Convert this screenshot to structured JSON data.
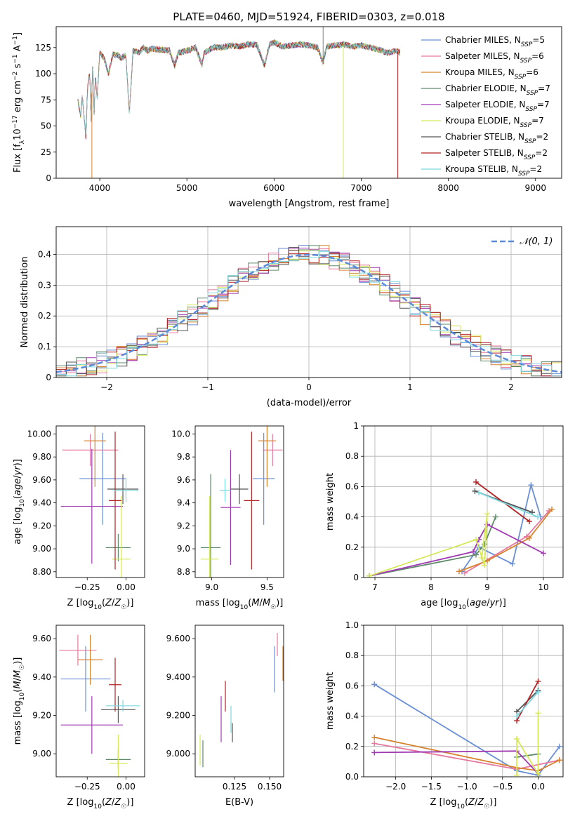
{
  "figure": {
    "title": "PLATE=0460, MJD=51924, FIBERID=0303, z=0.018"
  },
  "legend_entries": [
    {
      "name": "Chabrier MILES, N$_{SSP}$=5",
      "base": "Chabrier MILES, N",
      "sub": "SSP",
      "tail": "=5",
      "color": "#6a8fd6"
    },
    {
      "name": "Salpeter MILES, N$_{SSP}$=6",
      "base": "Salpeter MILES, N",
      "sub": "SSP",
      "tail": "=6",
      "color": "#e6789e"
    },
    {
      "name": "Kroupa MILES, N$_{SSP}$=6",
      "base": "Kroupa MILES, N",
      "sub": "SSP",
      "tail": "=6",
      "color": "#d6832e"
    },
    {
      "name": "Chabrier ELODIE, N$_{SSP}$=7",
      "base": "Chabrier ELODIE, N",
      "sub": "SSP",
      "tail": "=7",
      "color": "#5f8a6a"
    },
    {
      "name": "Salpeter ELODIE, N$_{SSP}$=7",
      "base": "Salpeter ELODIE, N",
      "sub": "SSP",
      "tail": "=7",
      "color": "#a03ab2"
    },
    {
      "name": "Kroupa ELODIE, N$_{SSP}$=7",
      "base": "Kroupa ELODIE, N",
      "sub": "SSP",
      "tail": "=7",
      "color": "#d6e85a"
    },
    {
      "name": "Chabrier STELIB, N$_{SSP}$=2",
      "base": "Chabrier STELIB, N",
      "sub": "SSP",
      "tail": "=2",
      "color": "#555555"
    },
    {
      "name": "Salpeter STELIB, N$_{SSP}$=2",
      "base": "Salpeter STELIB, N",
      "sub": "SSP",
      "tail": "=2",
      "color": "#b22222"
    },
    {
      "name": "Kroupa STELIB, N$_{SSP}$=2",
      "base": "Kroupa STELIB, N",
      "sub": "SSP",
      "tail": "=2",
      "color": "#7fd8e0"
    }
  ],
  "chart_data": [
    {
      "type": "line",
      "id": "spectrum",
      "xlabel": "wavelength [Angstrom, rest frame]",
      "ylabel": "Flux [f$_\\lambda$10$^{-17}$ erg cm$^{-2}$ s$^{-1}$ A$^{-1}$]",
      "xlim": [
        3500,
        9300
      ],
      "ylim": [
        0,
        145
      ],
      "xticks": [
        4000,
        5000,
        6000,
        7000,
        8000,
        9000
      ],
      "yticks": [
        0,
        25,
        50,
        75,
        100,
        125
      ],
      "grid": false,
      "legend_position": "top-right",
      "spectrum_range": [
        3750,
        7450
      ],
      "x": [
        3750,
        3780,
        3800,
        3840,
        3860,
        3880,
        3890,
        3900,
        3920,
        3935,
        3950,
        3970,
        4000,
        4050,
        4100,
        4150,
        4200,
        4250,
        4300,
        4340,
        4380,
        4450,
        4500,
        4550,
        4600,
        4700,
        4800,
        4860,
        4900,
        5000,
        5100,
        5175,
        5200,
        5300,
        5400,
        5500,
        5600,
        5700,
        5800,
        5890,
        5950,
        6000,
        6100,
        6200,
        6300,
        6400,
        6500,
        6563,
        6600,
        6700,
        6800,
        6900,
        7000,
        7100,
        7200,
        7300,
        7400,
        7450
      ],
      "series": [
        {
          "name": "combined",
          "y": [
            75,
            60,
            78,
            40,
            85,
            100,
            88,
            55,
            110,
            60,
            100,
            75,
            120,
            115,
            100,
            118,
            118,
            115,
            118,
            60,
            122,
            120,
            125,
            122,
            124,
            123,
            122,
            108,
            120,
            122,
            125,
            108,
            120,
            125,
            125,
            127,
            126,
            128,
            128,
            108,
            128,
            130,
            126,
            127,
            128,
            127,
            125,
            110,
            126,
            127,
            128,
            126,
            127,
            125,
            123,
            120,
            122,
            120
          ]
        }
      ],
      "features": {
        "lines_down": [
          {
            "x": 3910,
            "y": 0,
            "color": "#d6832e"
          },
          {
            "x": 6795,
            "y": 0,
            "color": "#d6e85a"
          },
          {
            "x": 7420,
            "y": 0,
            "color": "#b22222"
          }
        ],
        "spike_up": {
          "x": 6563,
          "y": 145,
          "color": "#7f7f7f"
        }
      }
    },
    {
      "type": "histogram",
      "id": "residuals",
      "xlabel": "(data-model)/error",
      "ylabel": "Normed distribution",
      "xlim": [
        -2.5,
        2.5
      ],
      "ylim": [
        0,
        0.49
      ],
      "xticks": [
        -2,
        -1,
        0,
        1,
        2
      ],
      "yticks": [
        0.0,
        0.1,
        0.2,
        0.3,
        0.4
      ],
      "grid": true,
      "reference": {
        "name": "$\\mathcal{N}(0,1)$",
        "label_text": "𝒩(0, 1)",
        "color": "#5b8ad8",
        "mu": 0,
        "sigma": 1
      },
      "bin_width": 0.1,
      "bin_start": -2.5
    },
    {
      "type": "errorbar",
      "id": "age_vs_Z",
      "xlabel": "Z [log$_{10}$(Z/Z$_\\odot$)]",
      "ylabel": "age  [log$_{10}$(age/yr)]",
      "xlim": [
        -0.45,
        0.12
      ],
      "ylim": [
        8.75,
        10.07
      ],
      "xticks": [
        -0.25,
        0.0
      ],
      "yticks": [
        8.8,
        9.0,
        9.2,
        9.4,
        9.6,
        9.8,
        10.0
      ],
      "points": [
        {
          "x": -0.15,
          "xerr": 0.15,
          "y": 9.61,
          "yerr": 0.4,
          "color": "#6a8fd6"
        },
        {
          "x": -0.23,
          "xerr": 0.18,
          "y": 9.86,
          "yerr": 0.14,
          "color": "#e6789e"
        },
        {
          "x": -0.2,
          "xerr": 0.07,
          "y": 9.94,
          "yerr": 0.4,
          "color": "#d6832e"
        },
        {
          "x": -0.05,
          "xerr": 0.08,
          "y": 9.01,
          "yerr": 0.12,
          "color": "#5f8a6a"
        },
        {
          "x": -0.22,
          "xerr": 0.2,
          "y": 9.37,
          "yerr": 0.5,
          "color": "#a03ab2"
        },
        {
          "x": -0.03,
          "xerr": 0.06,
          "y": 8.91,
          "yerr": 0.55,
          "color": "#d6e85a"
        },
        {
          "x": -0.02,
          "xerr": 0.1,
          "y": 9.52,
          "yerr": 0.13,
          "color": "#555555"
        },
        {
          "x": -0.07,
          "xerr": 0.04,
          "y": 9.42,
          "yerr": 0.6,
          "color": "#b22222"
        },
        {
          "x": 0.0,
          "xerr": 0.08,
          "y": 9.51,
          "yerr": 0.1,
          "color": "#7fd8e0"
        }
      ]
    },
    {
      "type": "errorbar",
      "id": "age_vs_mass",
      "xlabel": "mass [log$_{10}$(M/M$_\\odot$)]",
      "ylabel": "",
      "xlim": [
        8.85,
        9.65
      ],
      "ylim": [
        8.75,
        10.07
      ],
      "xticks": [
        9.0,
        9.5
      ],
      "yticks": [
        8.8,
        9.0,
        9.2,
        9.4,
        9.6,
        9.8,
        10.0
      ],
      "points": [
        {
          "x": 9.47,
          "xerr": 0.1,
          "y": 9.61,
          "yerr": 0.4,
          "color": "#6a8fd6"
        },
        {
          "x": 9.55,
          "xerr": 0.09,
          "y": 9.86,
          "yerr": 0.14,
          "color": "#e6789e"
        },
        {
          "x": 9.5,
          "xerr": 0.08,
          "y": 9.94,
          "yerr": 0.4,
          "color": "#d6832e"
        },
        {
          "x": 8.99,
          "xerr": 0.09,
          "y": 9.01,
          "yerr": 0.64,
          "color": "#5f8a6a"
        },
        {
          "x": 9.17,
          "xerr": 0.09,
          "y": 9.36,
          "yerr": 0.5,
          "color": "#a03ab2"
        },
        {
          "x": 8.98,
          "xerr": 0.08,
          "y": 8.91,
          "yerr": 0.55,
          "color": "#d6e85a"
        },
        {
          "x": 9.25,
          "xerr": 0.08,
          "y": 9.52,
          "yerr": 0.13,
          "color": "#555555"
        },
        {
          "x": 9.36,
          "xerr": 0.07,
          "y": 9.42,
          "yerr": 0.6,
          "color": "#b22222"
        },
        {
          "x": 9.12,
          "xerr": 0.05,
          "y": 9.51,
          "yerr": 0.1,
          "color": "#7fd8e0"
        }
      ]
    },
    {
      "type": "line",
      "id": "weight_vs_age",
      "xlabel": "age  [log$_{10}$(age/yr)]",
      "ylabel": "mass weight",
      "xlim": [
        6.8,
        10.35
      ],
      "ylim": [
        0,
        1.0
      ],
      "xticks": [
        7,
        8,
        9,
        10
      ],
      "yticks": [
        0.0,
        0.2,
        0.4,
        0.6,
        0.8,
        1.0
      ],
      "grid": true,
      "series": [
        {
          "color": "#6a8fd6",
          "x": [
            8.55,
            8.85,
            9.45,
            9.78,
            9.95
          ],
          "y": [
            0.04,
            0.2,
            0.09,
            0.61,
            0.4
          ]
        },
        {
          "color": "#e6789e",
          "x": [
            8.6,
            9.7,
            10.1
          ],
          "y": [
            0.03,
            0.27,
            0.44
          ]
        },
        {
          "color": "#d6832e",
          "x": [
            8.5,
            9.0,
            9.75,
            10.15
          ],
          "y": [
            0.04,
            0.11,
            0.26,
            0.45
          ]
        },
        {
          "color": "#5f8a6a",
          "x": [
            6.9,
            8.8,
            8.95,
            9.15
          ],
          "y": [
            0.01,
            0.15,
            0.22,
            0.4
          ]
        },
        {
          "color": "#a03ab2",
          "x": [
            6.9,
            8.75,
            8.85,
            9.0,
            10.0
          ],
          "y": [
            0.01,
            0.17,
            0.25,
            0.35,
            0.16
          ]
        },
        {
          "color": "#d6e85a",
          "x": [
            6.9,
            8.8,
            8.95,
            9.0,
            8.9
          ],
          "y": [
            0.01,
            0.25,
            0.08,
            0.42,
            0.13
          ]
        },
        {
          "color": "#555555",
          "x": [
            8.78,
            9.8
          ],
          "y": [
            0.57,
            0.43
          ]
        },
        {
          "color": "#b22222",
          "x": [
            8.8,
            9.75
          ],
          "y": [
            0.63,
            0.37
          ]
        },
        {
          "color": "#7fd8e0",
          "x": [
            8.85,
            9.9
          ],
          "y": [
            0.56,
            0.4
          ]
        }
      ]
    },
    {
      "type": "errorbar",
      "id": "mass_vs_Z",
      "xlabel": "Z [log$_{10}$(Z/Z$_\\odot$)]",
      "ylabel": "mass [log$_{10}$(M/M$_\\odot$)]",
      "xlim": [
        -0.45,
        0.12
      ],
      "ylim": [
        8.88,
        9.67
      ],
      "xticks": [
        -0.25,
        0.0
      ],
      "yticks": [
        9.0,
        9.2,
        9.4,
        9.6
      ],
      "points": [
        {
          "x": -0.26,
          "xerr": 0.16,
          "y": 9.39,
          "yerr": 0.17,
          "color": "#6a8fd6"
        },
        {
          "x": -0.31,
          "xerr": 0.12,
          "y": 9.54,
          "yerr": 0.08,
          "color": "#e6789e"
        },
        {
          "x": -0.23,
          "xerr": 0.08,
          "y": 9.49,
          "yerr": 0.13,
          "color": "#d6832e"
        },
        {
          "x": -0.05,
          "xerr": 0.08,
          "y": 8.97,
          "yerr": 0.05,
          "color": "#5f8a6a"
        },
        {
          "x": -0.22,
          "xerr": 0.2,
          "y": 9.15,
          "yerr": 0.15,
          "color": "#a03ab2"
        },
        {
          "x": -0.05,
          "xerr": 0.06,
          "y": 8.95,
          "yerr": 0.15,
          "color": "#d6e85a"
        },
        {
          "x": -0.05,
          "xerr": 0.11,
          "y": 9.23,
          "yerr": 0.07,
          "color": "#555555"
        },
        {
          "x": -0.07,
          "xerr": 0.04,
          "y": 9.36,
          "yerr": 0.14,
          "color": "#b22222"
        },
        {
          "x": -0.02,
          "xerr": 0.11,
          "y": 9.25,
          "yerr": 0.03,
          "color": "#7fd8e0"
        }
      ]
    },
    {
      "type": "errorbar",
      "id": "mass_vs_ebv",
      "xlabel": "E(B-V)",
      "ylabel": "",
      "xlim": [
        0.097,
        0.16
      ],
      "ylim": [
        8.88,
        9.67
      ],
      "xticks": [
        0.125,
        0.15
      ],
      "yticks": [
        9.0,
        9.2,
        9.4,
        9.6
      ],
      "points": [
        {
          "x": 0.1535,
          "xerr": 0,
          "y": 9.44,
          "yerr": 0.12,
          "color": "#6a8fd6"
        },
        {
          "x": 0.1555,
          "xerr": 0,
          "y": 9.57,
          "yerr": 0.06,
          "color": "#e6789e"
        },
        {
          "x": 0.1595,
          "xerr": 0,
          "y": 9.47,
          "yerr": 0.09,
          "color": "#d6832e"
        },
        {
          "x": 0.1025,
          "xerr": 0,
          "y": 9.0,
          "yerr": 0.07,
          "color": "#5f8a6a"
        },
        {
          "x": 0.1155,
          "xerr": 0,
          "y": 9.18,
          "yerr": 0.12,
          "color": "#a03ab2"
        },
        {
          "x": 0.1005,
          "xerr": 0,
          "y": 9.02,
          "yerr": 0.08,
          "color": "#d6e85a"
        },
        {
          "x": 0.1235,
          "xerr": 0,
          "y": 9.11,
          "yerr": 0.05,
          "color": "#555555"
        },
        {
          "x": 0.1185,
          "xerr": 0,
          "y": 9.3,
          "yerr": 0.08,
          "color": "#b22222"
        },
        {
          "x": 0.1225,
          "xerr": 0,
          "y": 9.18,
          "yerr": 0.07,
          "color": "#7fd8e0"
        }
      ]
    },
    {
      "type": "line",
      "id": "weight_vs_Z",
      "xlabel": "Z [log$_{10}$(Z/Z$_\\odot$)]",
      "ylabel": "mass weight",
      "xlim": [
        -2.45,
        0.35
      ],
      "ylim": [
        0,
        1.0
      ],
      "xticks": [
        -2.0,
        -1.5,
        -1.0,
        -0.5,
        0.0
      ],
      "yticks": [
        0.0,
        0.2,
        0.4,
        0.6,
        0.8,
        1.0
      ],
      "grid": true,
      "series": [
        {
          "color": "#6a8fd6",
          "x": [
            -2.3,
            -0.3,
            0.0,
            0.3
          ],
          "y": [
            0.61,
            0.04,
            0.01,
            0.2
          ]
        },
        {
          "color": "#e6789e",
          "x": [
            -2.3,
            -0.3,
            0.3
          ],
          "y": [
            0.22,
            0.05,
            0.11
          ]
        },
        {
          "color": "#d6832e",
          "x": [
            -2.3,
            -0.3,
            0.0,
            0.3
          ],
          "y": [
            0.26,
            0.06,
            0.04,
            0.11
          ]
        },
        {
          "color": "#5f8a6a",
          "x": [
            -0.3,
            0.0
          ],
          "y": [
            0.13,
            0.15
          ]
        },
        {
          "color": "#a03ab2",
          "x": [
            -2.3,
            -0.3,
            0.0
          ],
          "y": [
            0.16,
            0.17,
            0.02
          ]
        },
        {
          "color": "#d6e85a",
          "x": [
            -0.3,
            -0.3,
            0.0,
            0.0
          ],
          "y": [
            0.01,
            0.25,
            0.02,
            0.42
          ]
        },
        {
          "color": "#555555",
          "x": [
            -0.3,
            0.0
          ],
          "y": [
            0.43,
            0.57
          ]
        },
        {
          "color": "#b22222",
          "x": [
            -0.3,
            0.0
          ],
          "y": [
            0.37,
            0.63
          ]
        },
        {
          "color": "#7fd8e0",
          "x": [
            -0.3,
            0.0
          ],
          "y": [
            0.4,
            0.56
          ]
        }
      ]
    }
  ]
}
